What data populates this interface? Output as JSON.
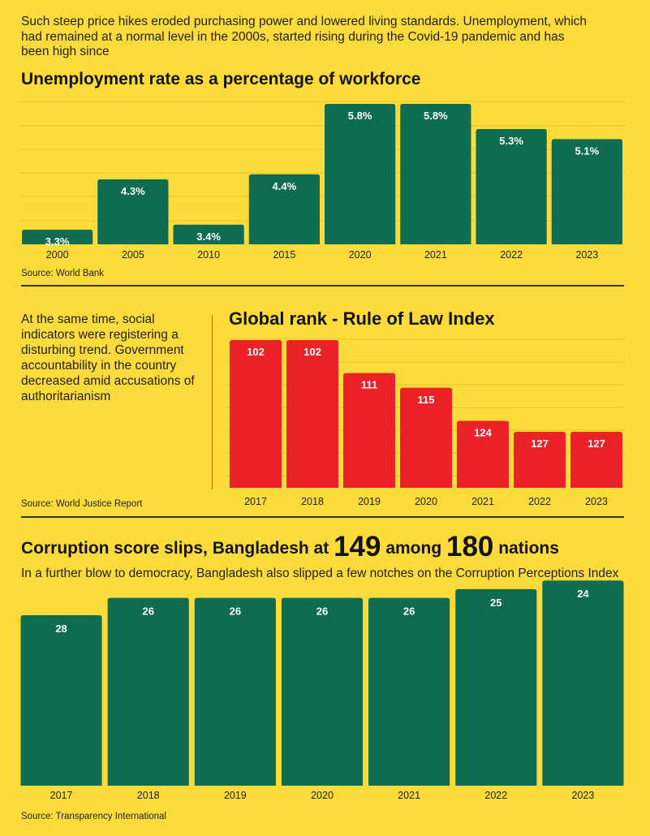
{
  "intro_text": "Such steep price hikes eroded purchasing power and lowered living standards. Unemployment, which had remained at a normal level in the 2000s, started rising during the Covid-19 pandemic and has been high since",
  "side_text": "At the same time, social indicators were registering a disturbing trend. Government accountability in the country decreased amid accusations of authoritarianism",
  "corruption_title": {
    "part1": "Corruption score slips, Bangladesh at ",
    "num1": "149",
    "part2": " among ",
    "num2": "180",
    "part3": " nations"
  },
  "corruption_subtitle": "In a further blow to democracy, Bangladesh also slipped a few notches on the Corruption Perceptions Index",
  "colors": {
    "background": "#FDDB3A",
    "green": "#106C50",
    "red": "#EC2229"
  },
  "chart_data": [
    {
      "type": "bar",
      "title": "Unemployment rate as a percentage of workforce",
      "categories": [
        "2000",
        "2005",
        "2010",
        "2015",
        "2020",
        "2021",
        "2022",
        "2023"
      ],
      "values": [
        3.3,
        4.3,
        3.4,
        4.4,
        5.8,
        5.8,
        5.3,
        5.1
      ],
      "labels": [
        "3.3%",
        "4.3%",
        "3.4%",
        "4.4%",
        "5.8%",
        "5.8%",
        "5.3%",
        "5.1%"
      ],
      "ylim": [
        0,
        6
      ],
      "grid": true,
      "source": "Source: World Bank"
    },
    {
      "type": "bar",
      "title": "Global rank - Rule of Law Index",
      "categories": [
        "2017",
        "2018",
        "2019",
        "2020",
        "2021",
        "2022",
        "2023"
      ],
      "values": [
        102,
        102,
        111,
        115,
        124,
        127,
        127
      ],
      "labels": [
        "102",
        "102",
        "111",
        "115",
        "124",
        "127",
        "127"
      ],
      "inverted": true,
      "grid": true,
      "source": "Source: World Justice Report"
    },
    {
      "type": "bar",
      "title": "Corruption score slips, Bangladesh at 149 among 180 nations",
      "categories": [
        "2017",
        "2018",
        "2019",
        "2020",
        "2021",
        "2022",
        "2023"
      ],
      "values": [
        28,
        26,
        26,
        26,
        26,
        25,
        24
      ],
      "labels": [
        "28",
        "26",
        "26",
        "26",
        "26",
        "25",
        "24"
      ],
      "grid": false,
      "source": "Source: Transparency International"
    }
  ]
}
